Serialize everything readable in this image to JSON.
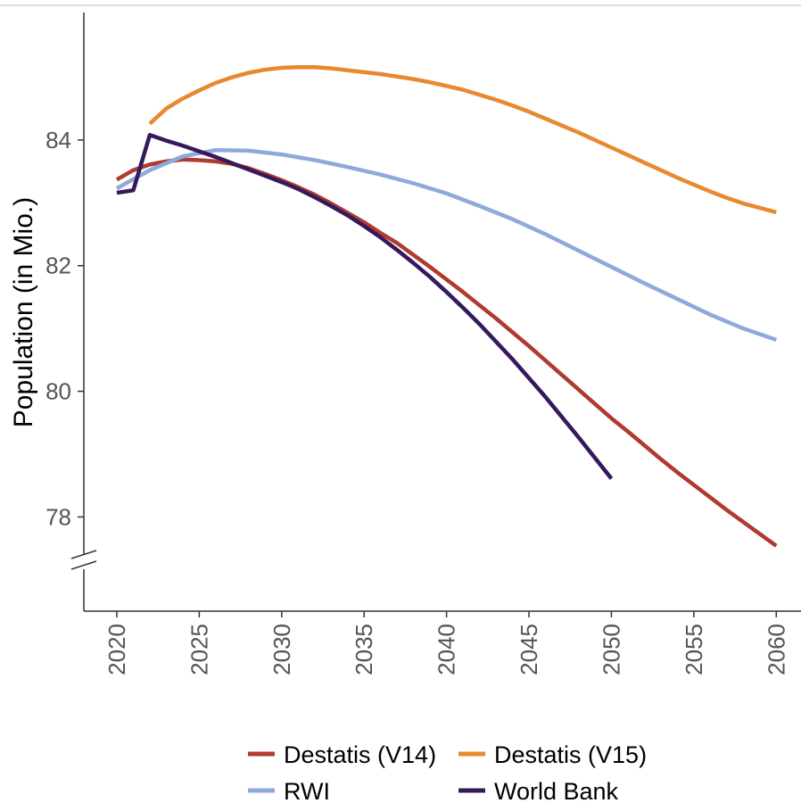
{
  "chart_data": {
    "type": "line",
    "title": "",
    "xlabel": "",
    "ylabel": "Population (in Mio.)",
    "xlim": [
      2018,
      2061.5
    ],
    "ylim": [
      76.5,
      86.03
    ],
    "x_ticks": [
      2020,
      2025,
      2030,
      2035,
      2040,
      2045,
      2050,
      2055,
      2060
    ],
    "y_ticks": [
      78,
      80,
      82,
      84
    ],
    "grid": false,
    "axis_break": "y",
    "legend_position": "bottom",
    "series": [
      {
        "name": "Destatis (V14)",
        "color": "#b03a2e",
        "x": [
          2020,
          2021,
          2022,
          2023,
          2024,
          2025,
          2026,
          2027,
          2028,
          2029,
          2030,
          2031,
          2032,
          2033,
          2034,
          2035,
          2036,
          2037,
          2038,
          2039,
          2040,
          2041,
          2042,
          2043,
          2044,
          2045,
          2046,
          2047,
          2048,
          2049,
          2050,
          2051,
          2052,
          2053,
          2054,
          2055,
          2056,
          2057,
          2058,
          2059,
          2060
        ],
        "y": [
          83.37,
          83.52,
          83.61,
          83.66,
          83.69,
          83.68,
          83.66,
          83.62,
          83.55,
          83.46,
          83.36,
          83.25,
          83.13,
          82.99,
          82.84,
          82.69,
          82.52,
          82.36,
          82.17,
          81.98,
          81.78,
          81.58,
          81.37,
          81.16,
          80.94,
          80.72,
          80.49,
          80.26,
          80.03,
          79.8,
          79.57,
          79.36,
          79.14,
          78.92,
          78.71,
          78.51,
          78.31,
          78.11,
          77.92,
          77.73,
          77.54
        ]
      },
      {
        "name": "Destatis (V15)",
        "color": "#e8892f",
        "x": [
          2022,
          2023,
          2024,
          2025,
          2026,
          2027,
          2028,
          2029,
          2030,
          2031,
          2032,
          2033,
          2034,
          2035,
          2036,
          2037,
          2038,
          2039,
          2040,
          2041,
          2042,
          2043,
          2044,
          2045,
          2046,
          2047,
          2048,
          2049,
          2050,
          2051,
          2052,
          2053,
          2054,
          2055,
          2056,
          2057,
          2058,
          2059,
          2060
        ],
        "y": [
          84.26,
          84.5,
          84.66,
          84.79,
          84.91,
          85.0,
          85.07,
          85.12,
          85.15,
          85.16,
          85.16,
          85.14,
          85.11,
          85.08,
          85.05,
          85.01,
          84.97,
          84.92,
          84.86,
          84.8,
          84.72,
          84.64,
          84.55,
          84.45,
          84.34,
          84.23,
          84.12,
          84.0,
          83.88,
          83.76,
          83.64,
          83.52,
          83.4,
          83.29,
          83.18,
          83.08,
          82.99,
          82.92,
          82.85
        ]
      },
      {
        "name": "RWI",
        "color": "#8fa9dc",
        "x": [
          2020,
          2022,
          2024,
          2026,
          2028,
          2030,
          2032,
          2034,
          2036,
          2038,
          2040,
          2042,
          2044,
          2046,
          2048,
          2050,
          2052,
          2054,
          2056,
          2058,
          2060
        ],
        "y": [
          83.23,
          83.52,
          83.74,
          83.84,
          83.83,
          83.77,
          83.68,
          83.57,
          83.45,
          83.31,
          83.15,
          82.95,
          82.74,
          82.5,
          82.24,
          81.98,
          81.72,
          81.47,
          81.22,
          81.0,
          80.82
        ]
      },
      {
        "name": "World Bank",
        "color": "#35195c",
        "x": [
          2020,
          2021,
          2022,
          2023,
          2024,
          2025,
          2026,
          2027,
          2028,
          2029,
          2030,
          2031,
          2032,
          2033,
          2034,
          2035,
          2036,
          2037,
          2038,
          2039,
          2040,
          2041,
          2042,
          2043,
          2044,
          2045,
          2046,
          2047,
          2048,
          2049,
          2050
        ],
        "y": [
          83.16,
          83.2,
          84.08,
          83.99,
          83.91,
          83.82,
          83.73,
          83.63,
          83.53,
          83.43,
          83.33,
          83.22,
          83.09,
          82.95,
          82.8,
          82.63,
          82.45,
          82.25,
          82.04,
          81.82,
          81.58,
          81.33,
          81.07,
          80.79,
          80.51,
          80.21,
          79.91,
          79.59,
          79.27,
          78.94,
          78.61
        ]
      }
    ]
  }
}
